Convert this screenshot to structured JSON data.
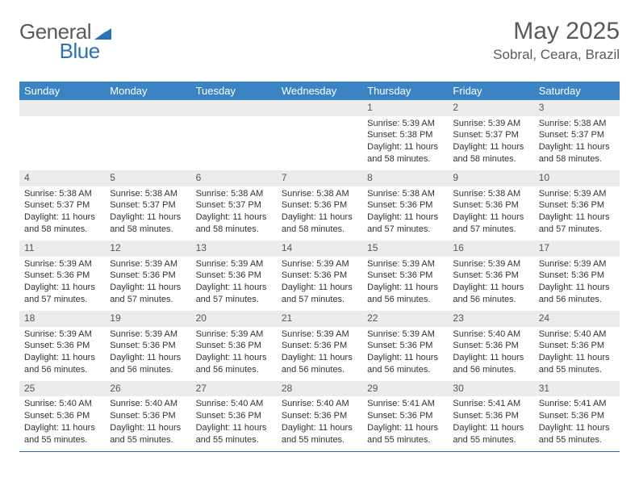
{
  "brand": {
    "part1": "General",
    "part2": "Blue"
  },
  "title": "May 2025",
  "location": "Sobral, Ceara, Brazil",
  "colors": {
    "header_bg": "#3b84c4",
    "rule": "#2a72b5",
    "daynum_bg": "#ececec",
    "text": "#333333",
    "muted": "#5a5a5a"
  },
  "day_headers": [
    "Sunday",
    "Monday",
    "Tuesday",
    "Wednesday",
    "Thursday",
    "Friday",
    "Saturday"
  ],
  "weeks": [
    [
      {
        "n": "",
        "lines": []
      },
      {
        "n": "",
        "lines": []
      },
      {
        "n": "",
        "lines": []
      },
      {
        "n": "",
        "lines": []
      },
      {
        "n": "1",
        "lines": [
          "Sunrise: 5:39 AM",
          "Sunset: 5:38 PM",
          "Daylight: 11 hours",
          "and 58 minutes."
        ]
      },
      {
        "n": "2",
        "lines": [
          "Sunrise: 5:39 AM",
          "Sunset: 5:37 PM",
          "Daylight: 11 hours",
          "and 58 minutes."
        ]
      },
      {
        "n": "3",
        "lines": [
          "Sunrise: 5:38 AM",
          "Sunset: 5:37 PM",
          "Daylight: 11 hours",
          "and 58 minutes."
        ]
      }
    ],
    [
      {
        "n": "4",
        "lines": [
          "Sunrise: 5:38 AM",
          "Sunset: 5:37 PM",
          "Daylight: 11 hours",
          "and 58 minutes."
        ]
      },
      {
        "n": "5",
        "lines": [
          "Sunrise: 5:38 AM",
          "Sunset: 5:37 PM",
          "Daylight: 11 hours",
          "and 58 minutes."
        ]
      },
      {
        "n": "6",
        "lines": [
          "Sunrise: 5:38 AM",
          "Sunset: 5:37 PM",
          "Daylight: 11 hours",
          "and 58 minutes."
        ]
      },
      {
        "n": "7",
        "lines": [
          "Sunrise: 5:38 AM",
          "Sunset: 5:36 PM",
          "Daylight: 11 hours",
          "and 58 minutes."
        ]
      },
      {
        "n": "8",
        "lines": [
          "Sunrise: 5:38 AM",
          "Sunset: 5:36 PM",
          "Daylight: 11 hours",
          "and 57 minutes."
        ]
      },
      {
        "n": "9",
        "lines": [
          "Sunrise: 5:38 AM",
          "Sunset: 5:36 PM",
          "Daylight: 11 hours",
          "and 57 minutes."
        ]
      },
      {
        "n": "10",
        "lines": [
          "Sunrise: 5:39 AM",
          "Sunset: 5:36 PM",
          "Daylight: 11 hours",
          "and 57 minutes."
        ]
      }
    ],
    [
      {
        "n": "11",
        "lines": [
          "Sunrise: 5:39 AM",
          "Sunset: 5:36 PM",
          "Daylight: 11 hours",
          "and 57 minutes."
        ]
      },
      {
        "n": "12",
        "lines": [
          "Sunrise: 5:39 AM",
          "Sunset: 5:36 PM",
          "Daylight: 11 hours",
          "and 57 minutes."
        ]
      },
      {
        "n": "13",
        "lines": [
          "Sunrise: 5:39 AM",
          "Sunset: 5:36 PM",
          "Daylight: 11 hours",
          "and 57 minutes."
        ]
      },
      {
        "n": "14",
        "lines": [
          "Sunrise: 5:39 AM",
          "Sunset: 5:36 PM",
          "Daylight: 11 hours",
          "and 57 minutes."
        ]
      },
      {
        "n": "15",
        "lines": [
          "Sunrise: 5:39 AM",
          "Sunset: 5:36 PM",
          "Daylight: 11 hours",
          "and 56 minutes."
        ]
      },
      {
        "n": "16",
        "lines": [
          "Sunrise: 5:39 AM",
          "Sunset: 5:36 PM",
          "Daylight: 11 hours",
          "and 56 minutes."
        ]
      },
      {
        "n": "17",
        "lines": [
          "Sunrise: 5:39 AM",
          "Sunset: 5:36 PM",
          "Daylight: 11 hours",
          "and 56 minutes."
        ]
      }
    ],
    [
      {
        "n": "18",
        "lines": [
          "Sunrise: 5:39 AM",
          "Sunset: 5:36 PM",
          "Daylight: 11 hours",
          "and 56 minutes."
        ]
      },
      {
        "n": "19",
        "lines": [
          "Sunrise: 5:39 AM",
          "Sunset: 5:36 PM",
          "Daylight: 11 hours",
          "and 56 minutes."
        ]
      },
      {
        "n": "20",
        "lines": [
          "Sunrise: 5:39 AM",
          "Sunset: 5:36 PM",
          "Daylight: 11 hours",
          "and 56 minutes."
        ]
      },
      {
        "n": "21",
        "lines": [
          "Sunrise: 5:39 AM",
          "Sunset: 5:36 PM",
          "Daylight: 11 hours",
          "and 56 minutes."
        ]
      },
      {
        "n": "22",
        "lines": [
          "Sunrise: 5:39 AM",
          "Sunset: 5:36 PM",
          "Daylight: 11 hours",
          "and 56 minutes."
        ]
      },
      {
        "n": "23",
        "lines": [
          "Sunrise: 5:40 AM",
          "Sunset: 5:36 PM",
          "Daylight: 11 hours",
          "and 56 minutes."
        ]
      },
      {
        "n": "24",
        "lines": [
          "Sunrise: 5:40 AM",
          "Sunset: 5:36 PM",
          "Daylight: 11 hours",
          "and 55 minutes."
        ]
      }
    ],
    [
      {
        "n": "25",
        "lines": [
          "Sunrise: 5:40 AM",
          "Sunset: 5:36 PM",
          "Daylight: 11 hours",
          "and 55 minutes."
        ]
      },
      {
        "n": "26",
        "lines": [
          "Sunrise: 5:40 AM",
          "Sunset: 5:36 PM",
          "Daylight: 11 hours",
          "and 55 minutes."
        ]
      },
      {
        "n": "27",
        "lines": [
          "Sunrise: 5:40 AM",
          "Sunset: 5:36 PM",
          "Daylight: 11 hours",
          "and 55 minutes."
        ]
      },
      {
        "n": "28",
        "lines": [
          "Sunrise: 5:40 AM",
          "Sunset: 5:36 PM",
          "Daylight: 11 hours",
          "and 55 minutes."
        ]
      },
      {
        "n": "29",
        "lines": [
          "Sunrise: 5:41 AM",
          "Sunset: 5:36 PM",
          "Daylight: 11 hours",
          "and 55 minutes."
        ]
      },
      {
        "n": "30",
        "lines": [
          "Sunrise: 5:41 AM",
          "Sunset: 5:36 PM",
          "Daylight: 11 hours",
          "and 55 minutes."
        ]
      },
      {
        "n": "31",
        "lines": [
          "Sunrise: 5:41 AM",
          "Sunset: 5:36 PM",
          "Daylight: 11 hours",
          "and 55 minutes."
        ]
      }
    ]
  ]
}
